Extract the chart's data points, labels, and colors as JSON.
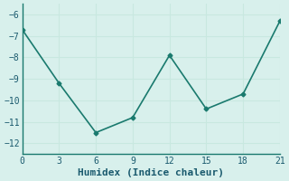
{
  "x": [
    0,
    3,
    6,
    9,
    12,
    15,
    18,
    21
  ],
  "y": [
    -6.7,
    -9.2,
    -11.5,
    -10.8,
    -7.9,
    -10.4,
    -9.7,
    -6.3
  ],
  "line_color": "#1a7a6e",
  "marker": "D",
  "marker_size": 2.5,
  "line_width": 1.2,
  "xlabel": "Humidex (Indice chaleur)",
  "xlim": [
    0,
    21
  ],
  "ylim": [
    -12.5,
    -5.5
  ],
  "xticks": [
    0,
    3,
    6,
    9,
    12,
    15,
    18,
    21
  ],
  "yticks": [
    -12,
    -11,
    -10,
    -9,
    -8,
    -7,
    -6
  ],
  "bg_color": "#d8f0ec",
  "grid_color": "#c8e8e0",
  "axis_color": "#1a7a6e",
  "font_color": "#1a5a6e",
  "font_size": 7,
  "xlabel_fontsize": 8
}
